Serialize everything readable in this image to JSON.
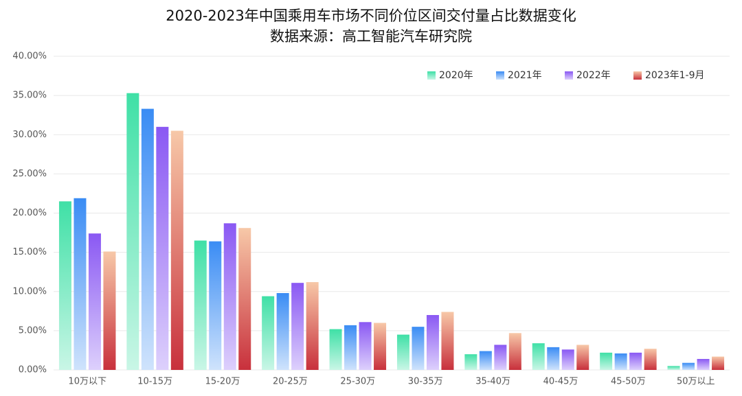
{
  "chart_data": {
    "type": "bar",
    "title": "2020-2023年中国乘用车市场不同价位区间交付量占比数据变化",
    "subtitle": "数据来源：高工智能汽车研究院",
    "categories": [
      "10万以下",
      "10-15万",
      "15-20万",
      "20-25万",
      "25-30万",
      "30-35万",
      "35-40万",
      "40-45万",
      "45-50万",
      "50万以上"
    ],
    "series": [
      {
        "name": "2020年",
        "color": "#3fe0a6",
        "color_bottom": "#c9f6e6",
        "values": [
          21.5,
          35.3,
          16.5,
          9.4,
          5.2,
          4.5,
          2.0,
          3.4,
          2.2,
          0.5
        ]
      },
      {
        "name": "2021年",
        "color": "#3a8cf4",
        "color_bottom": "#cfe3fc",
        "values": [
          21.9,
          33.3,
          16.4,
          9.8,
          5.7,
          5.5,
          2.4,
          2.9,
          2.1,
          0.9
        ]
      },
      {
        "name": "2022年",
        "color": "#8a58f3",
        "color_bottom": "#ddd0fc",
        "values": [
          17.4,
          31.0,
          18.7,
          11.1,
          6.1,
          7.0,
          3.2,
          2.6,
          2.2,
          1.4
        ]
      },
      {
        "name": "2023年1-9月",
        "color": "#f7c8a8",
        "color_bottom": "#c8303c",
        "values": [
          15.1,
          30.5,
          18.1,
          11.2,
          6.0,
          7.4,
          4.7,
          3.2,
          2.7,
          1.7
        ]
      }
    ],
    "ylim": [
      0,
      40
    ],
    "yticks": [
      {
        "value": 0,
        "label": "0.00%"
      },
      {
        "value": 5,
        "label": "5.00%"
      },
      {
        "value": 10,
        "label": "10.00%"
      },
      {
        "value": 15,
        "label": "15.00%"
      },
      {
        "value": 20,
        "label": "20.00%"
      },
      {
        "value": 25,
        "label": "25.00%"
      },
      {
        "value": 30,
        "label": "30.00%"
      },
      {
        "value": 35,
        "label": "35.00%"
      },
      {
        "value": 40,
        "label": "40.00%"
      }
    ],
    "grid": true,
    "legend": "top-right"
  }
}
